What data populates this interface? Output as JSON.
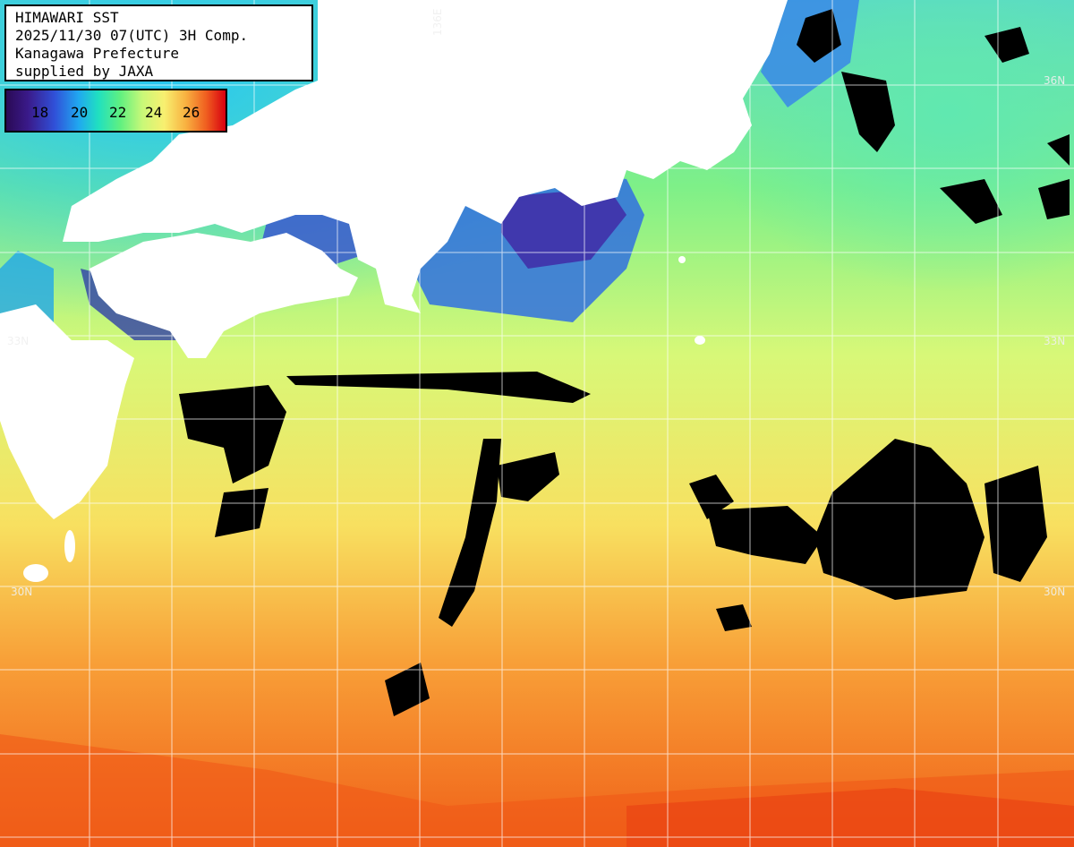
{
  "title": {
    "line1": "HIMAWARI SST",
    "line2": "2025/11/30 07(UTC) 3H Comp.",
    "line3": "Kanagawa Prefecture",
    "line4": "supplied by JAXA"
  },
  "legend": {
    "ticks": [
      "18",
      "20",
      "22",
      "24",
      "26"
    ],
    "colors": {
      "cold": "#2a0a55",
      "mid": "#c8f878",
      "warm": "#d80010"
    }
  },
  "grid_labels": {
    "lon_136": "136E",
    "lat_33_left": "33N",
    "lat_33_right": "33N",
    "lat_30_left": "30N",
    "lat_30_right": "30N",
    "lat_36_right": "36N"
  },
  "colors": {
    "land": "#ffffff",
    "cloud": "#000000",
    "grid": "#ffffff"
  }
}
